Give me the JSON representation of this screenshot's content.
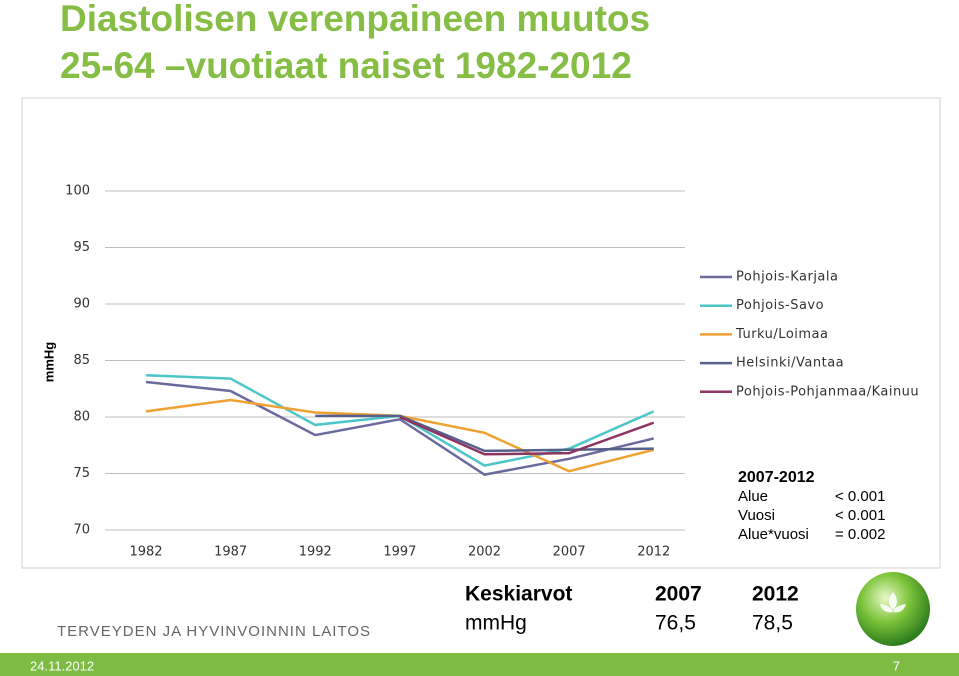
{
  "slide": {
    "title": [
      "Diastolisen verenpaineen muutos",
      "25-64 –vuotiaat naiset 1982-2012"
    ],
    "logo": "TERVEYDEN JA HYVINVOINNIN LAITOS",
    "date": "24.11.2012",
    "page": "7"
  },
  "chart_data": {
    "type": "line",
    "ylabel": "mmHg",
    "categories": [
      "1982",
      "1987",
      "1992",
      "1997",
      "2002",
      "2007",
      "2012"
    ],
    "series": [
      {
        "name": "Pohjois-Karjala",
        "color": "#6b6a9e",
        "values": [
          83.1,
          82.3,
          78.4,
          79.8,
          74.9,
          76.3,
          78.1
        ]
      },
      {
        "name": "Pohjois-Savo",
        "color": "#4cc6c8",
        "values": [
          83.7,
          83.4,
          79.3,
          80.1,
          75.7,
          77.2,
          80.5
        ]
      },
      {
        "name": "Turku/Loimaa",
        "color": "#f0a132",
        "values": [
          80.5,
          81.5,
          80.4,
          80.1,
          78.6,
          75.2,
          77.1
        ]
      },
      {
        "name": "Helsinki/Vantaa",
        "color": "#55618c",
        "values": [
          null,
          null,
          80.1,
          80.1,
          77.0,
          77.1,
          77.2
        ]
      },
      {
        "name": "Pohjois-Pohjanmaa/Kainuu",
        "color": "#8c3563",
        "values": [
          null,
          null,
          null,
          80.0,
          76.7,
          76.8,
          79.5
        ]
      }
    ],
    "ylim": [
      70,
      100
    ],
    "yticks": [
      70,
      75,
      80,
      85,
      90,
      95,
      100
    ],
    "grid": true,
    "legend": "right"
  },
  "stats": {
    "title": "2007-2012",
    "rows": [
      [
        "Alue",
        "< 0.001"
      ],
      [
        "Vuosi",
        "< 0.001"
      ],
      [
        "Alue*vuosi",
        "= 0.002"
      ]
    ]
  },
  "means": {
    "header": [
      "Keskiarvot",
      "2007",
      "2012"
    ],
    "rows": [
      [
        "mmHg",
        "76,5",
        "78,5"
      ]
    ]
  }
}
